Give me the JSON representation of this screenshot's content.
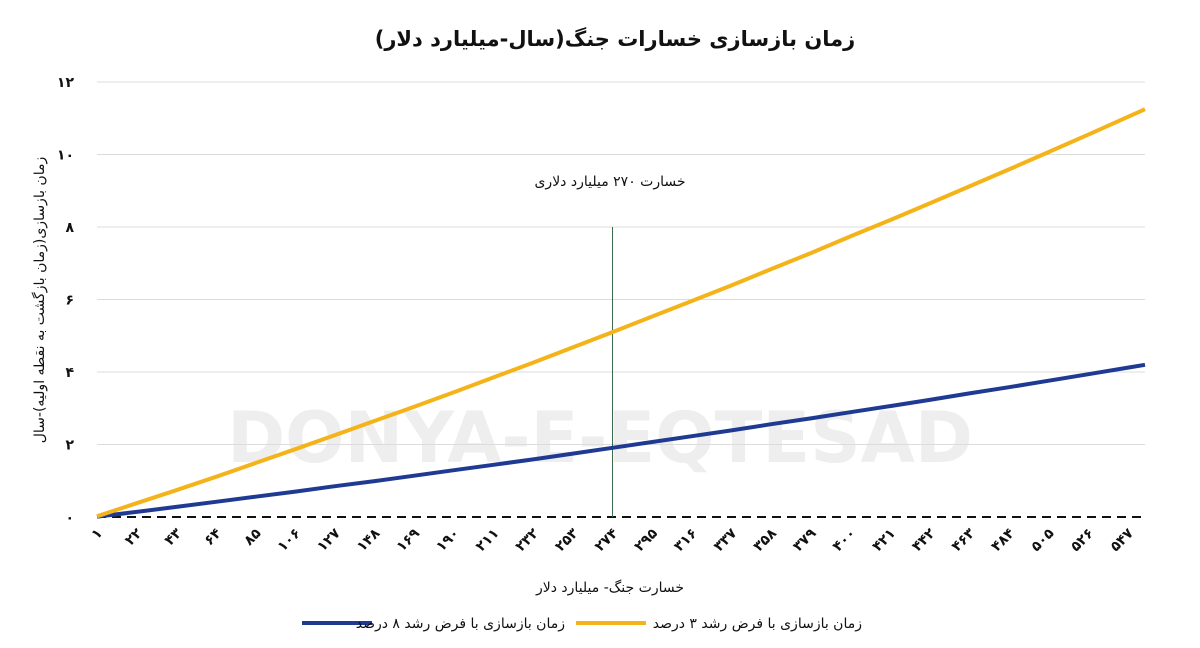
{
  "chart_data": {
    "type": "line",
    "title": "زمان بازسازی خسارات جنگ(سال-میلیارد دلار)",
    "xlabel": "خسارت جنگ- میلیارد دلار",
    "ylabel": "زمان بازسازی(زمان بازگشت به نقطه اولیه)-سال",
    "watermark": "DONYA-E-EQTESAD",
    "ylim": [
      0,
      12
    ],
    "xlim": [
      1,
      556
    ],
    "y_ticks": [
      0,
      2,
      4,
      6,
      8,
      10,
      12
    ],
    "y_tick_labels": [
      "۰",
      "۲",
      "۴",
      "۶",
      "۸",
      "۱۰",
      "۱۲"
    ],
    "x_tick_values": [
      1,
      22,
      43,
      64,
      85,
      106,
      127,
      148,
      169,
      190,
      211,
      232,
      253,
      274,
      295,
      316,
      337,
      358,
      379,
      400,
      421,
      442,
      463,
      484,
      505,
      526,
      547
    ],
    "x_tick_labels": [
      "۱",
      "۲۲",
      "۴۳",
      "۶۴",
      "۸۵",
      "۱۰۶",
      "۱۲۷",
      "۱۴۸",
      "۱۶۹",
      "۱۹۰",
      "۲۱۱",
      "۲۳۲",
      "۲۵۳",
      "۲۷۴",
      "۲۹۵",
      "۳۱۶",
      "۳۳۷",
      "۳۵۸",
      "۳۷۹",
      "۴۰۰",
      "۴۲۱",
      "۴۴۲",
      "۴۶۳",
      "۴۸۴",
      "۵۰۵",
      "۵۲۶",
      "۵۴۷"
    ],
    "x": [
      1,
      22,
      43,
      64,
      85,
      106,
      127,
      148,
      169,
      190,
      211,
      232,
      253,
      274,
      295,
      316,
      337,
      358,
      379,
      400,
      421,
      442,
      463,
      484,
      505,
      526,
      547,
      556
    ],
    "series": [
      {
        "name": "زمان بازسازی با فرض رشد ۸ درصد",
        "color": "#1f3a93",
        "values": [
          0.01,
          0.14,
          0.28,
          0.42,
          0.56,
          0.7,
          0.85,
          0.99,
          1.14,
          1.29,
          1.44,
          1.59,
          1.75,
          1.91,
          2.07,
          2.23,
          2.39,
          2.56,
          2.72,
          2.89,
          3.06,
          3.23,
          3.41,
          3.58,
          3.76,
          3.94,
          4.12,
          4.2
        ]
      },
      {
        "name": "زمان بازسازی با فرض رشد ۳ درصد",
        "color": "#f5b31a",
        "values": [
          0.02,
          0.38,
          0.74,
          1.11,
          1.49,
          1.87,
          2.26,
          2.65,
          3.04,
          3.44,
          3.85,
          4.26,
          4.68,
          5.1,
          5.53,
          5.96,
          6.39,
          6.84,
          7.28,
          7.74,
          8.19,
          8.65,
          9.12,
          9.59,
          10.07,
          10.55,
          11.04,
          11.25
        ]
      }
    ],
    "annotation": {
      "x": 274,
      "text": "خسارت ۲۷۰ میلیارد دلاری"
    },
    "grid": true,
    "legend": "bottom"
  }
}
